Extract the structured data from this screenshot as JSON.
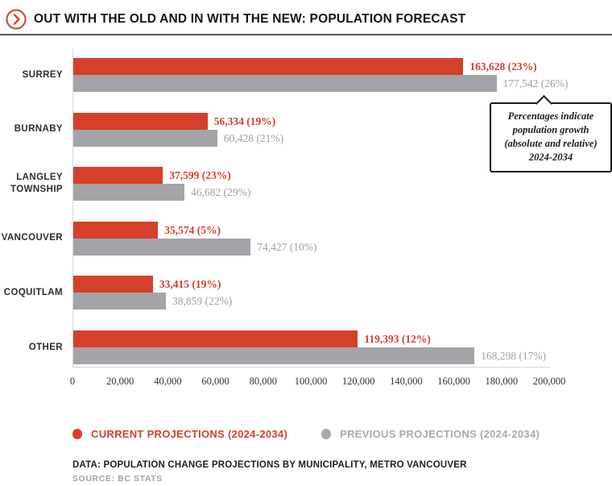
{
  "header": {
    "title": "OUT WITH THE OLD AND IN WITH THE NEW: POPULATION FORECAST"
  },
  "colors": {
    "accent_red": "#d5402b",
    "bar_gray": "#a2a4a8",
    "previous_text": "#9da0a4",
    "legend_gray": "#a8aaae",
    "axis_line": "#d7d7d7",
    "header_rule": "#5a5a5a"
  },
  "chart_data": {
    "type": "bar",
    "orientation": "horizontal",
    "title": "OUT WITH THE OLD AND IN WITH THE NEW: POPULATION FORECAST",
    "categories": [
      "SURREY",
      "BURNABY",
      "LANGLEY TOWNSHIP",
      "VANCOUVER",
      "COQUITLAM",
      "OTHER"
    ],
    "series": [
      {
        "name": "CURRENT PROJECTIONS (2024-2034)",
        "color": "#d5402b",
        "values": [
          163628,
          56334,
          37599,
          35574,
          33415,
          119393
        ],
        "labels": [
          "163,628 (23%)",
          "56,334 (19%)",
          "37,599 (23%)",
          "35,574 (5%)",
          "33,415 (19%)",
          "119,393 (12%)"
        ]
      },
      {
        "name": "PREVIOUS PROJECTIONS (2024-2034)",
        "color": "#a2a4a8",
        "values": [
          177542,
          60428,
          46682,
          74427,
          38859,
          168298
        ],
        "labels": [
          "177,542 (26%)",
          "60,428 (21%)",
          "46,682 (29%)",
          "74,427 (10%)",
          "38,859 (22%)",
          "168,298 (17%)"
        ]
      }
    ],
    "xlim": [
      0,
      200000
    ],
    "x_ticks": [
      "0",
      "20,000",
      "40,000",
      "60,000",
      "80,000",
      "100,000",
      "120,000",
      "140,000",
      "160,000",
      "180,000",
      "200,000"
    ],
    "grid": false,
    "legend_position": "bottom",
    "annotation": "Percentages indicate population growth (absolute and relative) 2024-2034"
  },
  "annotation": {
    "lines": [
      "Percentages indicate",
      "population growth",
      "(absolute and relative)",
      "2024-2034"
    ]
  },
  "legend": [
    {
      "label": "CURRENT PROJECTIONS (2024-2034)",
      "color": "#d5402b"
    },
    {
      "label": "PREVIOUS PROJECTIONS (2024-2034)",
      "color": "#a8aaae"
    }
  ],
  "footer": {
    "data_line": "DATA: POPULATION CHANGE PROJECTIONS BY MUNICIPALITY, METRO VANCOUVER",
    "source_line": "SOURCE: BC STATS"
  }
}
